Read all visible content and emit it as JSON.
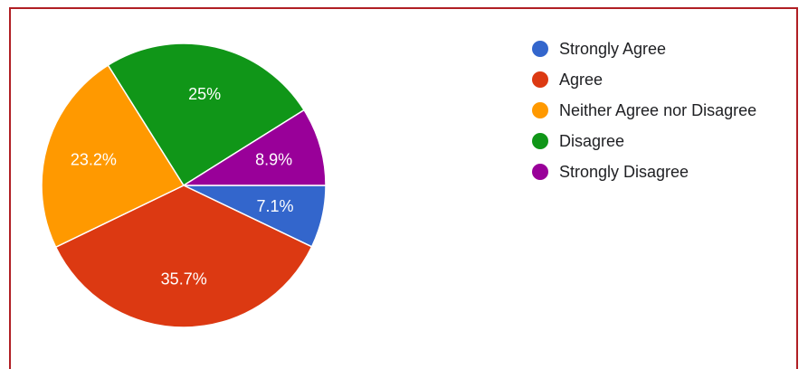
{
  "chart_data": {
    "type": "pie",
    "title": "",
    "slices": [
      {
        "name": "Strongly Agree",
        "value": 7.1,
        "label": "7.1%",
        "color": "#3366cc"
      },
      {
        "name": "Agree",
        "value": 35.7,
        "label": "35.7%",
        "color": "#dc3912"
      },
      {
        "name": "Neither Agree nor Disagree",
        "value": 23.2,
        "label": "23.2%",
        "color": "#ff9900"
      },
      {
        "name": "Disagree",
        "value": 25,
        "label": "25%",
        "color": "#109618"
      },
      {
        "name": "Strongly Disagree",
        "value": 8.9,
        "label": "8.9%",
        "color": "#990099"
      }
    ],
    "legend_position": "right",
    "start_angle_deg": 0,
    "direction": "clockwise"
  }
}
